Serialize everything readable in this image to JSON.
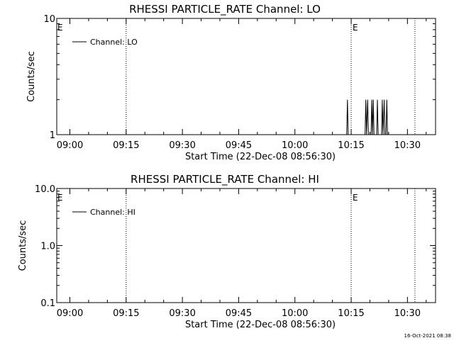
{
  "footer": {
    "timestamp": "16-Oct-2021 08:38"
  },
  "chart_data": [
    {
      "type": "line",
      "title": "RHESSI PARTICLE_RATE Channel: LO",
      "xlabel": "Start Time (22-Dec-08 08:56:30)",
      "ylabel": "Counts/sec",
      "xtick_labels": [
        "09:00",
        "09:15",
        "09:30",
        "09:45",
        "10:00",
        "10:15",
        "10:30"
      ],
      "ytick_labels": [
        "1",
        "10"
      ],
      "xlim_minutes": [
        0,
        101
      ],
      "ylim": [
        1,
        10
      ],
      "yscale": "log",
      "legend": "top-left",
      "series": [
        {
          "name": "Channel: LO",
          "points": [
            [
              77.3,
              1
            ],
            [
              77.5,
              2
            ],
            [
              77.7,
              1
            ],
            [
              82.2,
              1
            ],
            [
              82.4,
              2
            ],
            [
              82.6,
              1
            ],
            [
              82.9,
              2
            ],
            [
              83.1,
              1
            ],
            [
              83.8,
              1
            ],
            [
              84.0,
              2
            ],
            [
              84.2,
              1
            ],
            [
              84.4,
              2
            ],
            [
              84.6,
              1
            ],
            [
              85.3,
              1
            ],
            [
              85.5,
              2
            ],
            [
              85.7,
              1
            ],
            [
              86.6,
              1
            ],
            [
              86.8,
              2
            ],
            [
              87.0,
              1
            ],
            [
              87.3,
              2
            ],
            [
              87.5,
              1
            ],
            [
              87.8,
              1
            ],
            [
              88.0,
              2
            ],
            [
              88.2,
              1
            ]
          ]
        }
      ],
      "vlines": [
        {
          "x_minutes": 18.5,
          "label": ""
        },
        {
          "x_minutes": 78.5,
          "label": "E"
        },
        {
          "x_minutes": 95.5,
          "label": ""
        }
      ],
      "left_marker": "E"
    },
    {
      "type": "line",
      "title": "RHESSI PARTICLE_RATE Channel: HI",
      "xlabel": "Start Time (22-Dec-08 08:56:30)",
      "ylabel": "Counts/sec",
      "xtick_labels": [
        "09:00",
        "09:15",
        "09:30",
        "09:45",
        "10:00",
        "10:15",
        "10:30"
      ],
      "ytick_labels": [
        "0.1",
        "1.0",
        "10.0"
      ],
      "xlim_minutes": [
        0,
        101
      ],
      "ylim": [
        0.1,
        10
      ],
      "yscale": "log",
      "legend": "top-left",
      "series": [
        {
          "name": "Channel: HI",
          "points": []
        }
      ],
      "vlines": [
        {
          "x_minutes": 18.5,
          "label": ""
        },
        {
          "x_minutes": 78.5,
          "label": "E"
        },
        {
          "x_minutes": 95.5,
          "label": ""
        }
      ],
      "left_marker": "E"
    }
  ]
}
